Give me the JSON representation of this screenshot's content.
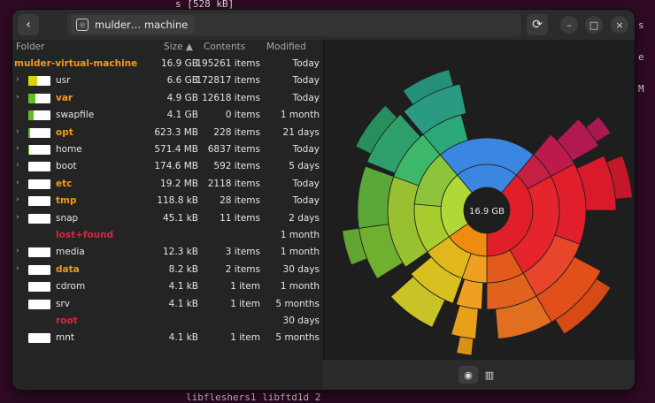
{
  "background": {
    "line1": "s [528 kB]",
    "side_chars": [
      "s",
      "e",
      "M"
    ],
    "bottom_line": "libfleshers1 libftd1d 2"
  },
  "header": {
    "path_label": "mulder… machine",
    "back_icon": "chevron-left-icon",
    "refresh_icon": "refresh-icon",
    "min_icon": "minimize-icon",
    "max_icon": "maximize-icon",
    "close_icon": "close-icon",
    "back_glyph": "‹",
    "refresh_glyph": "⟳",
    "min_glyph": "–",
    "max_glyph": "□",
    "close_glyph": "×",
    "drive_glyph": "◎"
  },
  "columns": {
    "folder": "Folder",
    "size": "Size ▲",
    "contents": "Contents",
    "modified": "Modified"
  },
  "rows": [
    {
      "name": "mulder-virtual-machine",
      "size": "16.9 GB",
      "contents": "195261 items",
      "modified": "Today",
      "style": "root"
    },
    {
      "name": "usr",
      "size": "6.6 GB",
      "contents": "172817 items",
      "modified": "Today",
      "style": "normal",
      "expand": "›",
      "fill": 0.4,
      "color": "#d9d30f"
    },
    {
      "name": "var",
      "size": "4.9 GB",
      "contents": "12618 items",
      "modified": "Today",
      "style": "bold",
      "expand": "›",
      "fill": 0.3,
      "color": "#60c020"
    },
    {
      "name": "swapfile",
      "size": "4.1 GB",
      "contents": "0 items",
      "modified": "1 month",
      "style": "normal",
      "expand": "",
      "fill": 0.25,
      "color": "#60c020"
    },
    {
      "name": "opt",
      "size": "623.3 MB",
      "contents": "228 items",
      "modified": "21 days",
      "style": "bold",
      "expand": "›",
      "fill": 0.06,
      "color": "#60c020"
    },
    {
      "name": "home",
      "size": "571.4 MB",
      "contents": "6837 items",
      "modified": "Today",
      "style": "normal",
      "expand": "›",
      "fill": 0.05,
      "color": "#60c020"
    },
    {
      "name": "boot",
      "size": "174.6 MB",
      "contents": "592 items",
      "modified": "5 days",
      "style": "normal",
      "expand": "›",
      "fill": 0,
      "color": "#60c020"
    },
    {
      "name": "etc",
      "size": "19.2 MB",
      "contents": "2118 items",
      "modified": "Today",
      "style": "bold",
      "expand": "›",
      "fill": 0,
      "color": "#60c020"
    },
    {
      "name": "tmp",
      "size": "118.8 kB",
      "contents": "28 items",
      "modified": "Today",
      "style": "bold",
      "expand": "›",
      "fill": 0,
      "color": "#60c020"
    },
    {
      "name": "snap",
      "size": "45.1 kB",
      "contents": "11 items",
      "modified": "2 days",
      "style": "normal",
      "expand": "›",
      "fill": 0,
      "color": "#60c020"
    },
    {
      "name": "lost+found",
      "size": "",
      "contents": "",
      "modified": "1 month",
      "style": "red",
      "expand": "",
      "nobar": true
    },
    {
      "name": "media",
      "size": "12.3 kB",
      "contents": "3 items",
      "modified": "1 month",
      "style": "normal",
      "expand": "›",
      "fill": 0,
      "color": "#60c020"
    },
    {
      "name": "data",
      "size": "8.2 kB",
      "contents": "2 items",
      "modified": "30 days",
      "style": "bold",
      "expand": "›",
      "fill": 0,
      "color": "#60c020"
    },
    {
      "name": "cdrom",
      "size": "4.1 kB",
      "contents": "1 item",
      "modified": "1 month",
      "style": "normal",
      "expand": "",
      "fill": 0,
      "color": "#60c020"
    },
    {
      "name": "srv",
      "size": "4.1 kB",
      "contents": "1 item",
      "modified": "5 months",
      "style": "normal",
      "expand": "",
      "fill": 0,
      "color": "#60c020"
    },
    {
      "name": "root",
      "size": "",
      "contents": "",
      "modified": "30 days",
      "style": "red",
      "expand": "",
      "nobar": true
    },
    {
      "name": "mnt",
      "size": "4.1 kB",
      "contents": "1 item",
      "modified": "5 months",
      "style": "normal",
      "expand": "",
      "fill": 0,
      "color": "#60c020"
    }
  ],
  "chart": {
    "center_label": "16.9 GB"
  },
  "footer": {
    "rings_icon": "rings-chart-icon",
    "treemap_icon": "treemap-chart-icon",
    "rings_glyph": "◉",
    "treemap_glyph": "▥"
  },
  "chart_data": {
    "type": "sunburst",
    "center": "16.9 GB",
    "segments": [
      {
        "name": "usr",
        "value": 6.6
      },
      {
        "name": "var",
        "value": 4.9
      },
      {
        "name": "swapfile",
        "value": 4.1
      },
      {
        "name": "opt",
        "value": 0.6233
      },
      {
        "name": "home",
        "value": 0.5714
      },
      {
        "name": "boot",
        "value": 0.1746
      }
    ]
  }
}
